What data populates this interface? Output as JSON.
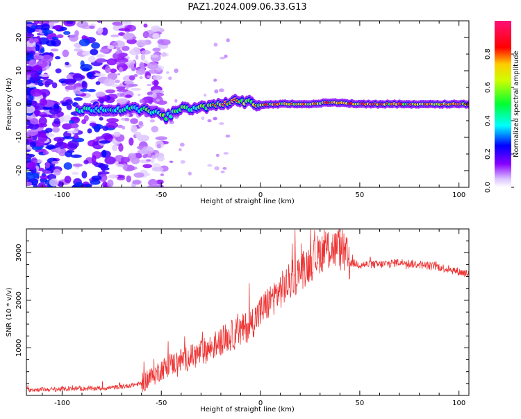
{
  "figure": {
    "title": "PAZ1.2024.009.06.33.G13"
  },
  "chart_data": [
    {
      "type": "heatmap",
      "xlabel": "Height of straight line (km)",
      "ylabel": "Frequency (Hz)",
      "xlim": [
        -118,
        105
      ],
      "ylim": [
        -25,
        25
      ],
      "x_ticks": [
        -100,
        -50,
        0,
        50,
        100
      ],
      "y_ticks": [
        -20,
        -10,
        0,
        10,
        20
      ],
      "colorbar": {
        "label": "Normalized spectral amplitude",
        "range": [
          0,
          1
        ],
        "ticks": [
          0.0,
          0.2,
          0.4,
          0.6,
          0.8
        ]
      },
      "ridge": {
        "x": [
          -95,
          -85,
          -75,
          -65,
          -55,
          -48,
          -40,
          -30,
          -20,
          -12,
          -5,
          0,
          10,
          25,
          35,
          50,
          75,
          100
        ],
        "frequency": [
          -2,
          -1.5,
          -1.5,
          -1.5,
          -2,
          -4,
          -1.5,
          -1,
          0,
          1,
          0.5,
          -0.3,
          0,
          0,
          0.5,
          0,
          0,
          0
        ]
      },
      "grid": false
    },
    {
      "type": "line",
      "xlabel": "Height of straight line (km)",
      "ylabel": "SNR (10 * v/v)",
      "xlim": [
        -118,
        105
      ],
      "ylim": [
        0,
        3500
      ],
      "x_ticks": [
        -100,
        -50,
        0,
        50,
        100
      ],
      "y_ticks": [
        1000,
        2000,
        3000
      ],
      "color": "#ee3333",
      "series": [
        {
          "x": [
            -118,
            -100,
            -80,
            -70,
            -60,
            -55,
            -50,
            -45,
            -40,
            -35,
            -30,
            -25,
            -20,
            -15,
            -10,
            -5,
            0,
            5,
            10,
            15,
            20,
            25,
            30,
            35,
            40,
            45,
            50,
            60,
            70,
            80,
            90,
            100,
            105
          ],
          "values": [
            120,
            130,
            150,
            180,
            250,
            380,
            550,
            650,
            750,
            800,
            900,
            1000,
            1150,
            1250,
            1350,
            1500,
            1750,
            2000,
            2200,
            2400,
            2600,
            2800,
            3000,
            3100,
            3050,
            2800,
            2750,
            2750,
            2800,
            2750,
            2700,
            2600,
            2550
          ]
        }
      ],
      "grid": false
    }
  ]
}
